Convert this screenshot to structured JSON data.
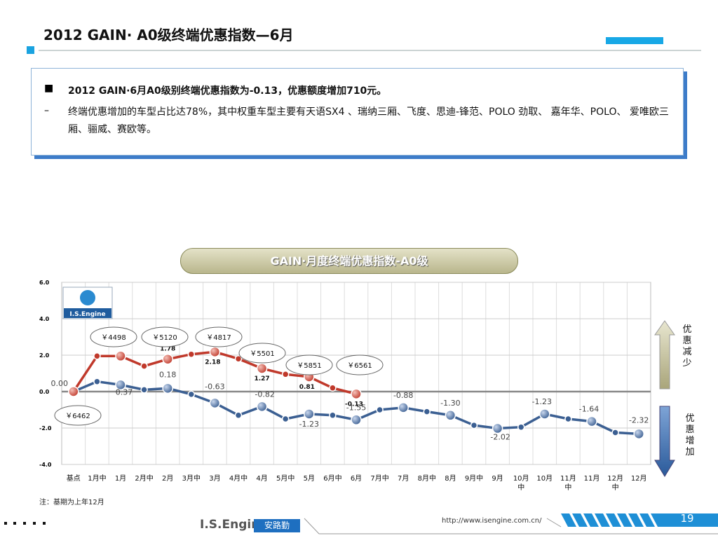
{
  "header": {
    "title": "2012 GAIN· A0级终端优惠指数—6月"
  },
  "bullets": [
    "2012 GAIN·6月A0级别终端优惠指数为-0.13，优惠额度增加710元。",
    "终端优惠增加的车型占比达78%，其中权重车型主要有天语SX4 、瑞纳三厢、飞度、思迪-锋范、POLO 劲取、 嘉年华、POLO、 爱唯欧三厢、骊威、赛欧等。"
  ],
  "chart_data": {
    "type": "line",
    "title": "GAIN·月度终端优惠指数-A0级",
    "categories": [
      "基点",
      "1月中",
      "1月",
      "2月中",
      "2月",
      "3月中",
      "3月",
      "4月中",
      "4月",
      "5月中",
      "5月",
      "6月中",
      "6月",
      "7月中",
      "7月",
      "8月中",
      "8月",
      "9月中",
      "9月",
      "10月中",
      "10月",
      "11月中",
      "11月",
      "12月中",
      "12月"
    ],
    "series": [
      {
        "color": "#3b5f92",
        "values": [
          0,
          0.55,
          0.37,
          0.1,
          0.18,
          -0.15,
          -0.63,
          -1.3,
          -0.82,
          -1.5,
          -1.23,
          -1.3,
          -1.55,
          -1.0,
          -0.88,
          -1.1,
          -1.3,
          -1.85,
          -2.02,
          -1.95,
          -1.23,
          -1.5,
          -1.64,
          -2.25,
          -2.32
        ],
        "value_labels": [
          "0.00",
          null,
          "0.37",
          null,
          "0.18",
          null,
          "-0.63",
          null,
          "-0.82",
          null,
          "-1.23",
          null,
          "-1.55",
          null,
          "-0.88",
          null,
          "-1.30",
          null,
          "-2.02",
          null,
          "-1.23",
          null,
          "-1.64",
          null,
          "-2.32"
        ]
      },
      {
        "color": "#c0392b",
        "values": [
          0,
          1.95,
          1.95,
          1.4,
          1.78,
          2.05,
          2.18,
          1.8,
          1.27,
          0.95,
          0.81,
          0.2,
          -0.13,
          null,
          null,
          null,
          null,
          null,
          null,
          null,
          null,
          null,
          null,
          null,
          null
        ],
        "value_labels": [
          null,
          null,
          null,
          null,
          "1.78",
          null,
          "2.18",
          null,
          "1.27",
          null,
          "0.81",
          null,
          "-0.13",
          null,
          null,
          null,
          null,
          null,
          null,
          null,
          null,
          null,
          null,
          null,
          null
        ]
      }
    ],
    "price_labels": [
      "￥6462",
      "￥4498",
      "￥5120",
      "￥4817",
      "￥5501",
      "￥5851",
      "￥6561"
    ],
    "ylim": [
      -4,
      6
    ],
    "yticks": [
      {
        "value": -4,
        "label": "-4.0"
      },
      {
        "value": -2,
        "label": "-2.0"
      },
      {
        "value": 0,
        "label": "0.0"
      },
      {
        "value": 2,
        "label": "2.0"
      },
      {
        "value": 4,
        "label": "4.0"
      },
      {
        "value": 6,
        "label": "6.0"
      }
    ],
    "grid": true,
    "logo": "I.S.Engine",
    "up_label": "优惠减少",
    "down_label": "优惠增加",
    "note": "注：基期为上年12月"
  },
  "footer": {
    "brand": "I.S.Engine",
    "brand_cn": "安路勤",
    "url": "http://www.isengine.com.cn/",
    "page": "19"
  }
}
